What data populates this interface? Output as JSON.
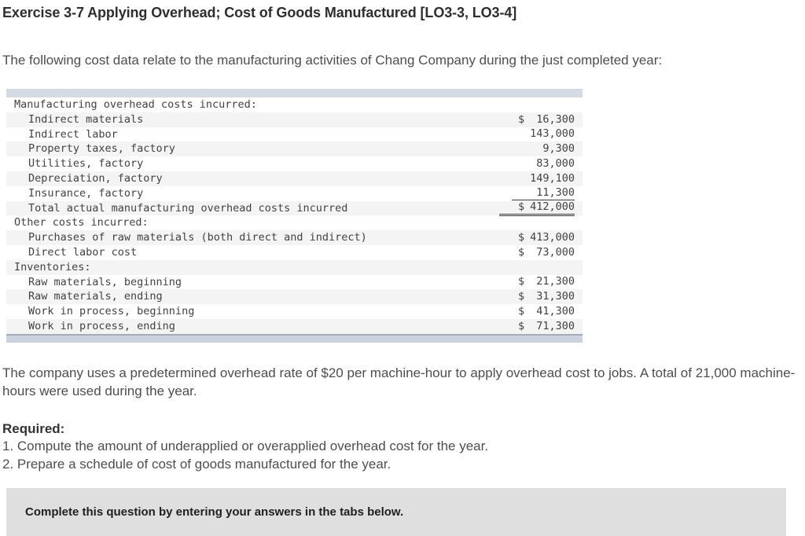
{
  "page": {
    "title": "Exercise 3-7 Applying Overhead; Cost of Goods Manufactured [LO3-3, LO3-4]",
    "intro": "The following cost data relate to the manufacturing activities of Chang Company during the just completed year:",
    "paragraph": "The company uses a predetermined overhead rate of $20 per machine-hour to apply overhead cost to jobs. A total of 21,000 machine-hours were used during the year.",
    "required": {
      "label": "Required:",
      "items": [
        "1. Compute the amount of underapplied or overapplied overhead cost for the year.",
        "2. Prepare a schedule of cost of goods manufactured for the year."
      ]
    },
    "instruction_box": "Complete this question by entering your answers in the tabs below."
  },
  "cost_table": {
    "rows": [
      {
        "label": "Manufacturing overhead costs incurred:",
        "dollar": "",
        "amount": ""
      },
      {
        "label": "Indirect materials",
        "dollar": "$",
        "amount": "16,300"
      },
      {
        "label": "Indirect labor",
        "dollar": "",
        "amount": "143,000"
      },
      {
        "label": "Property taxes, factory",
        "dollar": "",
        "amount": "9,300"
      },
      {
        "label": "Utilities, factory",
        "dollar": "",
        "amount": "83,000"
      },
      {
        "label": "Depreciation, factory",
        "dollar": "",
        "amount": "149,100"
      },
      {
        "label": "Insurance, factory",
        "dollar": "",
        "amount": "11,300"
      },
      {
        "label": "Total actual manufacturing overhead costs incurred",
        "dollar": "$",
        "amount": "412,000"
      },
      {
        "label": "Other costs incurred:",
        "dollar": "",
        "amount": ""
      },
      {
        "label": "Purchases of raw materials (both direct and indirect)",
        "dollar": "$",
        "amount": "413,000"
      },
      {
        "label": "Direct labor cost",
        "dollar": "$",
        "amount": "73,000"
      },
      {
        "label": "Inventories:",
        "dollar": "",
        "amount": ""
      },
      {
        "label": "Raw materials, beginning",
        "dollar": "$",
        "amount": "21,300"
      },
      {
        "label": "Raw materials, ending",
        "dollar": "$",
        "amount": "31,300"
      },
      {
        "label": "Work in process, beginning",
        "dollar": "$",
        "amount": "41,300"
      },
      {
        "label": "Work in process, ending",
        "dollar": "$",
        "amount": "71,300"
      }
    ]
  },
  "colors": {
    "table_bar_top": "#d5dbe5",
    "table_bar_bottom": "#ccd3df",
    "table_stripe": "#f4f4f4",
    "instruction_box_bg": "#dfdfdf",
    "rule": "#3a3a3a"
  }
}
